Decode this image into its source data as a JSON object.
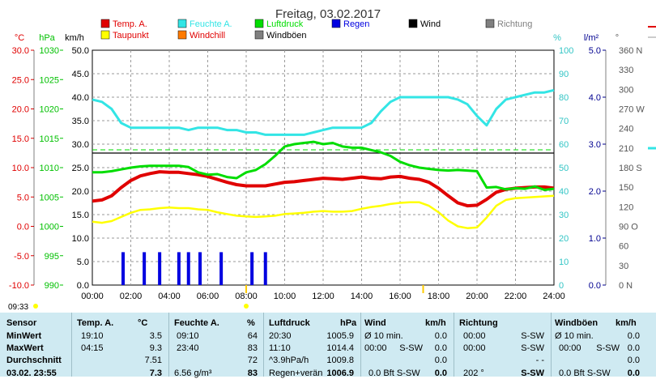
{
  "title": "Freitag, 03.02.2017",
  "colors": {
    "temp": "#e00000",
    "dew": "#ffff00",
    "hum": "#33e5e5",
    "press": "#00dd00",
    "rain": "#0000e0",
    "windchill": "#ff7a00",
    "gust": "#808080",
    "wind": "#000000",
    "dir": "#808080",
    "grid": "#9a9a9a",
    "axis_temp": "#e00000",
    "axis_press": "#00c000",
    "axis_hum": "#33c5c5",
    "axis_rain": "#000090"
  },
  "legend": [
    {
      "label": "Temp. A.",
      "color": "#e00000"
    },
    {
      "label": "Feuchte A.",
      "color": "#33e5e5"
    },
    {
      "label": "Luftdruck",
      "color": "#00dd00"
    },
    {
      "label": "Regen",
      "color": "#0000e0"
    },
    {
      "label": "Wind",
      "color": "#000000"
    },
    {
      "label": "Richtung",
      "color": "#808080"
    },
    {
      "label": "Taupunkt",
      "color": "#ffff00"
    },
    {
      "label": "Windchill",
      "color": "#ff7a00"
    },
    {
      "label": "Windböen",
      "color": "#808080"
    }
  ],
  "chart_data": {
    "type": "line",
    "title": "Freitag, 03.02.2017",
    "x_ticks": [
      "00:00",
      "02:00",
      "04:00",
      "06:00",
      "08:00",
      "10:00",
      "12:00",
      "14:00",
      "16:00",
      "18:00",
      "20:00",
      "22:00",
      "24:00"
    ],
    "axes": {
      "temp": {
        "unit": "°C",
        "range": [
          -10,
          30
        ],
        "ticks": [
          "30.0",
          "25.0",
          "20.0",
          "15.0",
          "10.0",
          "5.0",
          "0.0",
          "-5.0",
          "-10.0"
        ]
      },
      "press": {
        "unit": "hPa",
        "range": [
          990,
          1030
        ],
        "ticks": [
          "1030",
          "1025",
          "1020",
          "1015",
          "1010",
          "1005",
          "1000",
          "995",
          "990"
        ]
      },
      "wind": {
        "unit": "km/h",
        "range": [
          0,
          50
        ],
        "ticks": [
          "50.0",
          "45.0",
          "40.0",
          "35.0",
          "30.0",
          "25.0",
          "20.0",
          "15.0",
          "10.0",
          "5.0",
          "0.0"
        ]
      },
      "hum": {
        "unit": "%",
        "range": [
          0,
          100
        ],
        "ticks": [
          "100",
          "90",
          "80",
          "70",
          "60",
          "50",
          "40",
          "30",
          "20",
          "10",
          "0"
        ]
      },
      "rain": {
        "unit": "l/m²",
        "range": [
          0,
          5
        ],
        "ticks": [
          "5.0",
          "4.0",
          "3.0",
          "2.0",
          "1.0",
          "0.0"
        ]
      },
      "dir": {
        "unit": "°",
        "range": [
          0,
          360
        ],
        "ticks": [
          "360 N",
          "330",
          "300",
          "270 W",
          "240",
          "210",
          "180 S",
          "150",
          "120",
          "90 O",
          "60",
          "30",
          "0 N"
        ]
      }
    },
    "series": [
      {
        "name": "Temp. A.",
        "axis": "temp",
        "x": [
          0,
          0.5,
          1,
          1.5,
          2,
          2.5,
          3,
          3.5,
          4,
          4.5,
          5,
          5.5,
          6,
          6.5,
          7,
          7.5,
          8,
          8.5,
          9,
          9.5,
          10,
          10.5,
          11,
          11.5,
          12,
          12.5,
          13,
          13.5,
          14,
          14.5,
          15,
          15.5,
          16,
          16.5,
          17,
          17.5,
          18,
          18.5,
          19,
          19.5,
          20,
          20.5,
          21,
          21.5,
          22,
          22.5,
          23,
          23.5,
          24
        ],
        "y": [
          4.3,
          4.5,
          5.2,
          6.6,
          7.8,
          8.6,
          9.0,
          9.3,
          9.2,
          9.2,
          9.0,
          8.8,
          8.5,
          8.0,
          7.5,
          7.1,
          6.9,
          6.9,
          6.9,
          7.2,
          7.5,
          7.6,
          7.8,
          8.0,
          8.2,
          8.1,
          8.0,
          8.2,
          8.4,
          8.2,
          8.1,
          8.4,
          8.5,
          8.2,
          8.0,
          7.5,
          6.5,
          5.2,
          4.0,
          3.5,
          3.6,
          4.6,
          5.8,
          6.3,
          6.5,
          6.6,
          6.7,
          6.7,
          6.5
        ]
      },
      {
        "name": "Taupunkt",
        "axis": "temp",
        "x": [
          0,
          0.5,
          1,
          1.5,
          2,
          2.5,
          3,
          3.5,
          4,
          4.5,
          5,
          5.5,
          6,
          6.5,
          7,
          7.5,
          8,
          8.5,
          9,
          9.5,
          10,
          10.5,
          11,
          11.5,
          12,
          12.5,
          13,
          13.5,
          14,
          14.5,
          15,
          15.5,
          16,
          16.5,
          17,
          17.5,
          18,
          18.5,
          19,
          19.5,
          20,
          20.5,
          21,
          21.5,
          22,
          22.5,
          23,
          23.5,
          24
        ],
        "y": [
          0.8,
          0.6,
          0.9,
          1.6,
          2.3,
          2.8,
          2.9,
          3.1,
          3.2,
          3.1,
          3.1,
          2.9,
          2.8,
          2.4,
          2.1,
          1.8,
          1.7,
          1.6,
          1.7,
          1.8,
          2.1,
          2.2,
          2.3,
          2.5,
          2.6,
          2.5,
          2.5,
          2.6,
          3.0,
          3.3,
          3.5,
          3.8,
          4.0,
          4.1,
          4.1,
          3.5,
          2.4,
          1.0,
          0.0,
          -0.3,
          -0.2,
          1.5,
          3.5,
          4.5,
          4.8,
          4.9,
          5.0,
          5.1,
          5.2
        ]
      },
      {
        "name": "Feuchte A.",
        "axis": "hum",
        "x": [
          0,
          0.5,
          1,
          1.5,
          2,
          2.5,
          3,
          3.5,
          4,
          4.5,
          5,
          5.5,
          6,
          6.5,
          7,
          7.5,
          8,
          8.5,
          9,
          9.5,
          10,
          10.5,
          11,
          11.5,
          12,
          12.5,
          13,
          13.5,
          14,
          14.5,
          15,
          15.5,
          16,
          16.5,
          17,
          17.5,
          18,
          18.5,
          19,
          19.5,
          20,
          20.5,
          21,
          21.5,
          22,
          22.5,
          23,
          23.5,
          24
        ],
        "y": [
          79,
          78,
          75,
          69,
          67,
          67,
          67,
          67,
          67,
          67,
          66,
          67,
          67,
          67,
          66,
          66,
          65,
          65,
          64,
          64,
          64,
          64,
          64,
          65,
          66,
          67,
          67,
          67,
          67,
          69,
          74,
          78,
          80,
          80,
          80,
          80,
          80,
          80,
          79,
          77,
          72,
          68,
          75,
          79,
          80,
          81,
          82,
          82,
          83
        ]
      },
      {
        "name": "Luftdruck",
        "axis": "press",
        "x": [
          0,
          0.5,
          1,
          1.5,
          2,
          2.5,
          3,
          3.5,
          4,
          4.5,
          5,
          5.5,
          6,
          6.5,
          7,
          7.5,
          8,
          8.5,
          9,
          9.5,
          10,
          10.5,
          11,
          11.5,
          12,
          12.5,
          13,
          13.5,
          14,
          14.5,
          15,
          15.5,
          16,
          16.5,
          17,
          17.5,
          18,
          18.5,
          19,
          19.5,
          20,
          20.5,
          21,
          21.5,
          22,
          22.5,
          23,
          23.5,
          24
        ],
        "y": [
          1009.2,
          1009.2,
          1009.4,
          1009.7,
          1010.0,
          1010.2,
          1010.3,
          1010.3,
          1010.3,
          1010.3,
          1010.1,
          1009.2,
          1008.8,
          1008.9,
          1008.4,
          1008.2,
          1009.2,
          1009.6,
          1010.6,
          1012.0,
          1013.6,
          1014.0,
          1014.2,
          1014.4,
          1014.0,
          1014.2,
          1013.6,
          1013.4,
          1013.4,
          1013.0,
          1012.6,
          1012.0,
          1011.0,
          1010.4,
          1010.0,
          1009.8,
          1009.6,
          1009.5,
          1009.6,
          1009.5,
          1009.4,
          1006.6,
          1006.7,
          1006.3,
          1006.5,
          1006.4,
          1006.8,
          1006.2,
          1006.4
        ]
      },
      {
        "name": "Regen",
        "axis": "rain",
        "type": "bar",
        "x": [
          1.6,
          2.7,
          3.5,
          4.5,
          5.0,
          5.6,
          6.7,
          8.3,
          9.0
        ],
        "y": [
          0.7,
          0.7,
          0.7,
          0.7,
          0.7,
          0.7,
          0.7,
          0.7,
          0.7
        ]
      }
    ]
  },
  "stats": {
    "headers": [
      "Sensor",
      "Temp. A.",
      "°C",
      "Feuchte A.",
      "%",
      "Luftdruck",
      "hPa",
      "Wind",
      "km/h",
      "Richtung",
      "Windböen",
      "km/h"
    ],
    "row_labels": [
      "MinWert",
      "MaxWert",
      "Durchschnitt"
    ],
    "temp": [
      [
        "19:10",
        "3.5"
      ],
      [
        "04:15",
        "9.3"
      ],
      [
        "",
        "7.51"
      ]
    ],
    "hum": [
      [
        "09:10",
        "64"
      ],
      [
        "23:40",
        "83"
      ],
      [
        "",
        "72"
      ]
    ],
    "press": [
      [
        "20:30",
        "1005.9"
      ],
      [
        "11:10",
        "1014.4"
      ],
      [
        "^3.9hPa/h",
        "1009.8"
      ]
    ],
    "wind": [
      [
        "Ø 10 min.",
        "0.0"
      ],
      [
        "00:00",
        "S-SW",
        "0.0"
      ],
      [
        "",
        "0.0"
      ]
    ],
    "dir": [
      [
        "00:00",
        "S-SW"
      ],
      [
        "00:00",
        "S-SW"
      ],
      [
        "- -"
      ]
    ],
    "gust": [
      [
        "Ø 10 min.",
        "0.0"
      ],
      [
        "00:00",
        "S-SW",
        "0.0"
      ],
      [
        "",
        "0.0"
      ]
    ],
    "current": {
      "time": "03.02. 23:55",
      "temp": "7.3",
      "hum_extra": "6.56 g/m³",
      "hum": "83",
      "press_label": "Regen+verän",
      "press": "1006.9",
      "wind": "0.0 Bft S-SW",
      "wind_val": "0.0",
      "dir": "202 °",
      "dir_word": "S-SW",
      "gust": "0.0 Bft S-SW",
      "gust_val": "0.0"
    }
  },
  "footer": {
    "time": "09:33"
  }
}
